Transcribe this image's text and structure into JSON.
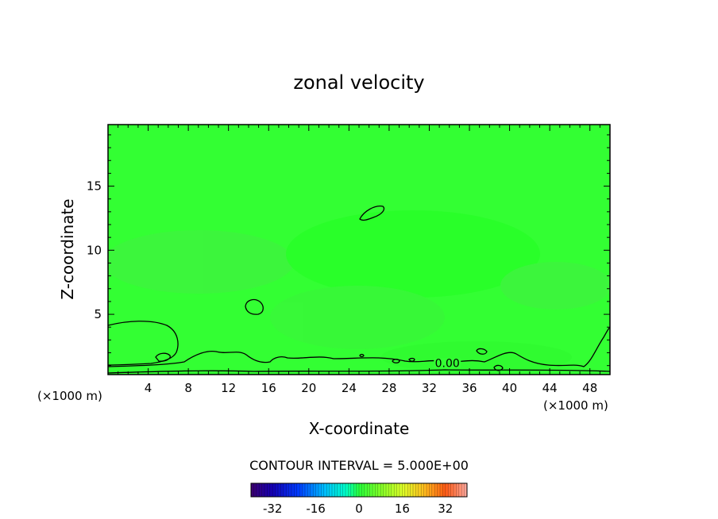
{
  "chart_data": {
    "type": "heatmap",
    "title": "zonal velocity",
    "xlabel": "X-coordinate",
    "ylabel": "Z-coordinate",
    "x_unit_left": "(×1000 m)",
    "x_unit_right": "(×1000 m)",
    "xlim": [
      0,
      50
    ],
    "ylim": [
      0.3,
      19.8
    ],
    "x_ticks": [
      4,
      8,
      12,
      16,
      20,
      24,
      28,
      32,
      36,
      40,
      44,
      48
    ],
    "y_ticks": [
      5,
      10,
      15
    ],
    "contour_interval_text": "CONTOUR INTERVAL = 5.000E+00",
    "contour_labels": [
      {
        "text": "0.00",
        "x": 33.8,
        "y": 0.9
      }
    ],
    "field_color": "#33ff33",
    "colorbar": {
      "min": -40,
      "max": 40,
      "tick_values": [
        -32,
        -16,
        0,
        16,
        32
      ],
      "tick_labels": [
        "-32",
        "-16",
        "0",
        "16",
        "32"
      ]
    }
  }
}
